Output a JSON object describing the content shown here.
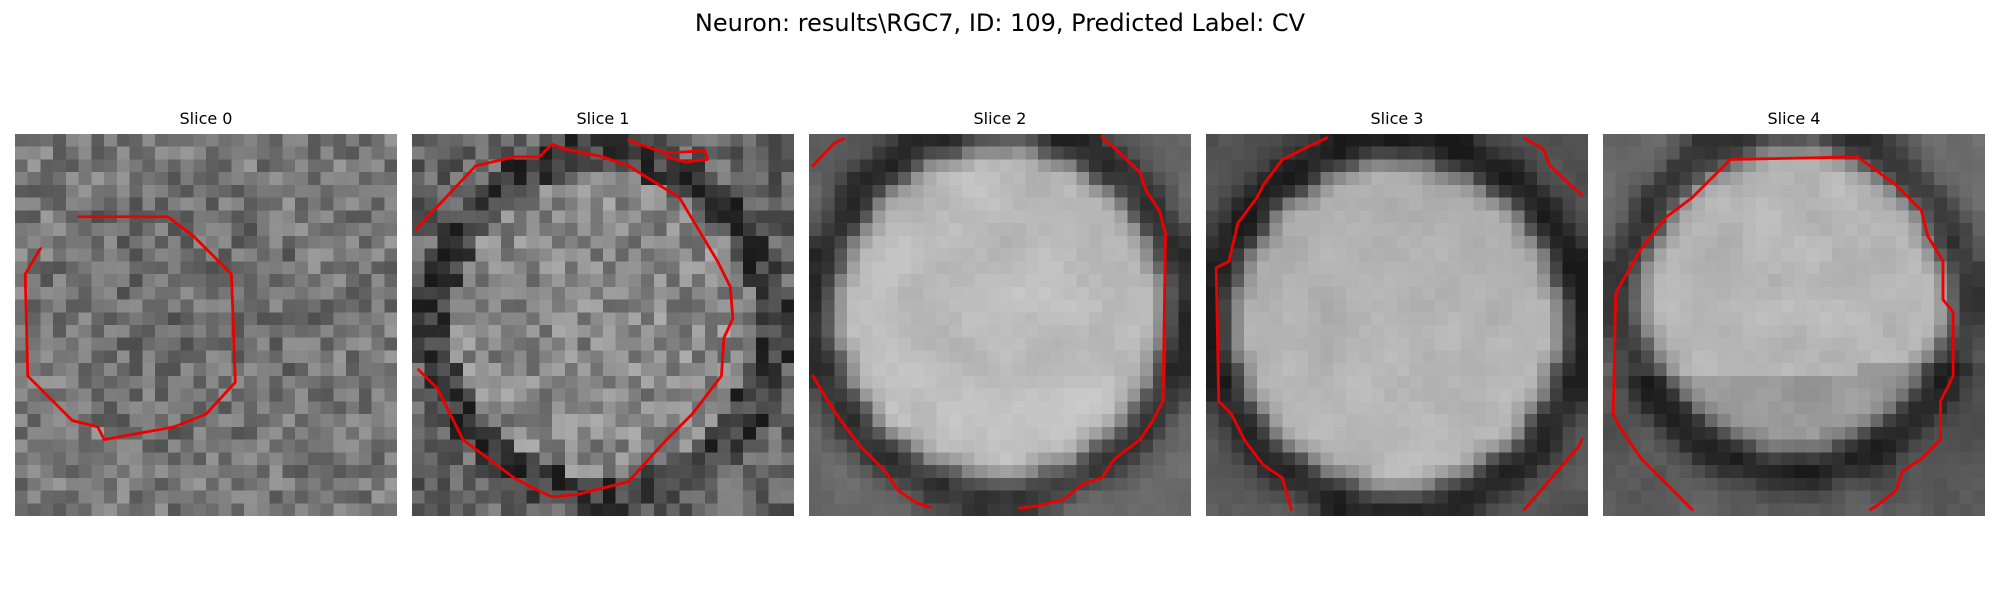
{
  "figure": {
    "title": "Neuron: results\\RGC7, ID: 109, Predicted Label: CV"
  },
  "slices": [
    {
      "title": "Slice 0"
    },
    {
      "title": "Slice 1"
    },
    {
      "title": "Slice 2"
    },
    {
      "title": "Slice 3"
    },
    {
      "title": "Slice 4"
    }
  ],
  "colors": {
    "contour": "#ee0000",
    "background": "#ffffff"
  }
}
